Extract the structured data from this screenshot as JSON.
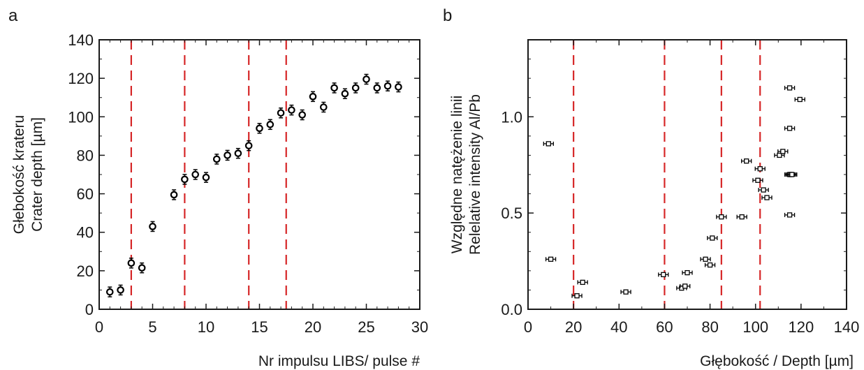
{
  "chart_data": [
    {
      "type": "scatter",
      "panel_label": "a",
      "xlabel": "Nr impulsu LIBS/ pulse #",
      "ylabel_lines": [
        "Głebokość krateru",
        "Crater depth [µm]"
      ],
      "xlim": [
        0,
        30
      ],
      "ylim": [
        0,
        140
      ],
      "xticks": [
        0,
        5,
        10,
        15,
        20,
        25,
        30
      ],
      "yticks": [
        0,
        20,
        40,
        60,
        80,
        100,
        120,
        140
      ],
      "xtick_labels": [
        "0",
        "5",
        "10",
        "15",
        "20",
        "25",
        "30"
      ],
      "ytick_labels": [
        "0",
        "20",
        "40",
        "60",
        "80",
        "100",
        "120",
        "140"
      ],
      "vlines": [
        3,
        8,
        14,
        17.5
      ],
      "vline_color": "#d62728",
      "marker_color": "#000000",
      "series": [
        {
          "x": [
            1,
            2,
            3,
            4,
            5,
            7,
            8,
            9,
            10,
            11,
            12,
            13,
            14,
            15,
            16,
            17,
            18,
            19,
            20,
            21,
            22,
            23,
            24,
            25,
            26,
            27,
            28
          ],
          "y": [
            9,
            10,
            24,
            21.5,
            43,
            59.5,
            67.5,
            70,
            68.5,
            78,
            80,
            81,
            85,
            94,
            96,
            102,
            103.5,
            101,
            110.5,
            105,
            115,
            112,
            115,
            119.5,
            115,
            116,
            115.5
          ]
        }
      ]
    },
    {
      "type": "scatter",
      "panel_label": "b",
      "xlabel": "Głębokość / Depth [µm]",
      "ylabel_lines": [
        "Względne natężenie linii",
        "Relelative intensity Al/Pb"
      ],
      "xlim": [
        0,
        140
      ],
      "ylim": [
        0,
        1.4
      ],
      "xticks": [
        0,
        20,
        40,
        60,
        80,
        100,
        120,
        140
      ],
      "yticks": [
        0,
        0.5,
        1.0
      ],
      "xtick_labels": [
        "0",
        "20",
        "40",
        "60",
        "80",
        "100",
        "120",
        "140"
      ],
      "ytick_labels": [
        "0.0",
        "0.5",
        "1.0"
      ],
      "vlines": [
        20,
        60,
        85,
        102
      ],
      "vline_color": "#d62728",
      "marker_color": "#000000",
      "series": [
        {
          "x": [
            9,
            10,
            21.5,
            24,
            43,
            59.5,
            67.5,
            69,
            70,
            78,
            80,
            81,
            85,
            94,
            96,
            101,
            102,
            103.5,
            105,
            110.5,
            112,
            115,
            115,
            115,
            115,
            115.5,
            116,
            119.5
          ],
          "y": [
            0.86,
            0.26,
            0.07,
            0.14,
            0.09,
            0.18,
            0.11,
            0.12,
            0.19,
            0.26,
            0.23,
            0.37,
            0.48,
            0.48,
            0.77,
            0.67,
            0.73,
            0.62,
            0.58,
            0.8,
            0.82,
            1.15,
            0.94,
            0.7,
            0.49,
            0.7,
            0.7,
            1.09
          ]
        }
      ]
    }
  ]
}
